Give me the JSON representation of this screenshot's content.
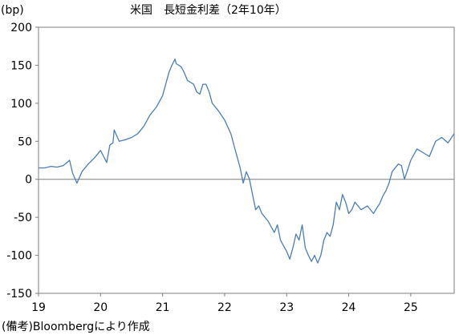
{
  "chart_data": {
    "type": "line",
    "title": "米国　長短金利差（2年10年）",
    "ylabel": "(bp)",
    "xlabel": "",
    "ylim": [
      -150,
      200
    ],
    "xlim": [
      2019,
      2025.7
    ],
    "yticks": [
      -150,
      -100,
      -50,
      0,
      50,
      100,
      150,
      200
    ],
    "xtick_labels": [
      "19",
      "20",
      "21",
      "22",
      "23",
      "24",
      "25"
    ],
    "xtick_values": [
      2019,
      2020,
      2021,
      2022,
      2023,
      2024,
      2025
    ],
    "grid": false,
    "legend": "none",
    "zero_line": true,
    "note": "(備考)Bloombergにより作成",
    "colors": {
      "line": "#4a7ebb",
      "axis": "#7f7f7f"
    },
    "series": [
      {
        "name": "",
        "x": [
          2019.0,
          2019.1,
          2019.2,
          2019.3,
          2019.4,
          2019.5,
          2019.55,
          2019.62,
          2019.7,
          2019.8,
          2019.9,
          2020.0,
          2020.1,
          2020.15,
          2020.2,
          2020.22,
          2020.3,
          2020.4,
          2020.5,
          2020.6,
          2020.7,
          2020.8,
          2020.9,
          2021.0,
          2021.1,
          2021.15,
          2021.2,
          2021.22,
          2021.3,
          2021.35,
          2021.4,
          2021.5,
          2021.55,
          2021.6,
          2021.65,
          2021.7,
          2021.75,
          2021.8,
          2021.9,
          2022.0,
          2022.1,
          2022.15,
          2022.2,
          2022.25,
          2022.3,
          2022.35,
          2022.4,
          2022.45,
          2022.5,
          2022.55,
          2022.6,
          2022.7,
          2022.8,
          2022.85,
          2022.9,
          2023.0,
          2023.05,
          2023.1,
          2023.15,
          2023.2,
          2023.25,
          2023.3,
          2023.35,
          2023.4,
          2023.45,
          2023.5,
          2023.55,
          2023.6,
          2023.65,
          2023.7,
          2023.75,
          2023.8,
          2023.85,
          2023.9,
          2023.95,
          2024.0,
          2024.05,
          2024.1,
          2024.2,
          2024.3,
          2024.4,
          2024.45,
          2024.5,
          2024.55,
          2024.6,
          2024.65,
          2024.7,
          2024.8,
          2024.85,
          2024.9,
          2025.0,
          2025.1,
          2025.2,
          2025.3,
          2025.4,
          2025.5,
          2025.6,
          2025.7
        ],
        "values": [
          15,
          15,
          17,
          16,
          18,
          25,
          8,
          -5,
          10,
          20,
          28,
          38,
          22,
          45,
          48,
          65,
          50,
          52,
          55,
          60,
          70,
          85,
          95,
          110,
          140,
          150,
          158,
          152,
          148,
          140,
          130,
          125,
          115,
          112,
          125,
          125,
          115,
          100,
          90,
          78,
          60,
          45,
          30,
          15,
          -5,
          10,
          0,
          -20,
          -40,
          -35,
          -45,
          -55,
          -70,
          -60,
          -80,
          -95,
          -105,
          -90,
          -72,
          -80,
          -60,
          -90,
          -100,
          -108,
          -100,
          -110,
          -100,
          -80,
          -70,
          -75,
          -60,
          -30,
          -40,
          -20,
          -30,
          -45,
          -40,
          -30,
          -40,
          -35,
          -45,
          -38,
          -32,
          -22,
          -15,
          -5,
          10,
          20,
          18,
          0,
          25,
          40,
          35,
          30,
          50,
          55,
          48,
          60
        ]
      }
    ]
  }
}
